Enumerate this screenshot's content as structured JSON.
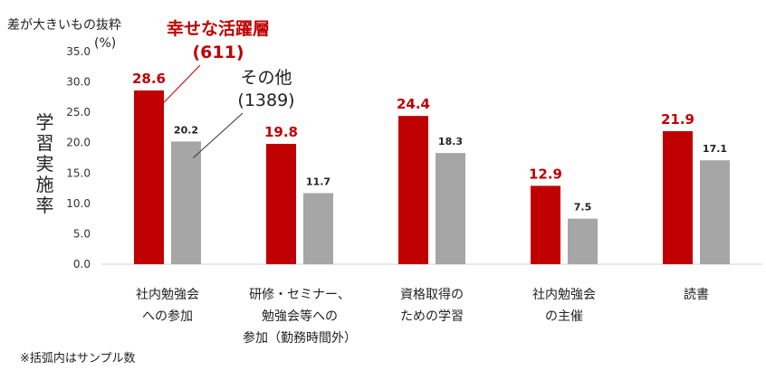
{
  "chart_data": {
    "type": "bar",
    "subtitle": "差が大きいもの抜粋",
    "unit": "(%)",
    "ylabel": "学習実施率",
    "ylim": [
      0,
      35
    ],
    "yticks": [
      "0.0",
      "5.0",
      "10.0",
      "15.0",
      "20.0",
      "25.0",
      "30.0",
      "35.0"
    ],
    "grid": false,
    "categories": [
      [
        "社内勉強会",
        "への参加"
      ],
      [
        "研修・セミナー、",
        "勉強会等への",
        "参加（勤務時間外）"
      ],
      [
        "資格取得の",
        "ための学習"
      ],
      [
        "社内勉強会",
        "の主催"
      ],
      [
        "読書"
      ]
    ],
    "series": [
      {
        "name": "幸せな活躍層",
        "count": "(611)",
        "color": "#c00000",
        "values": [
          28.6,
          19.8,
          24.4,
          12.9,
          21.9
        ],
        "labels": [
          "28.6",
          "19.8",
          "24.4",
          "12.9",
          "21.9"
        ]
      },
      {
        "name": "その他",
        "count": "(1389)",
        "color": "#a6a6a6",
        "values": [
          20.2,
          11.7,
          18.3,
          7.5,
          17.1
        ],
        "labels": [
          "20.2",
          "11.7",
          "18.3",
          "7.5",
          "17.1"
        ]
      }
    ],
    "note": "※括弧内はサンプル数"
  }
}
